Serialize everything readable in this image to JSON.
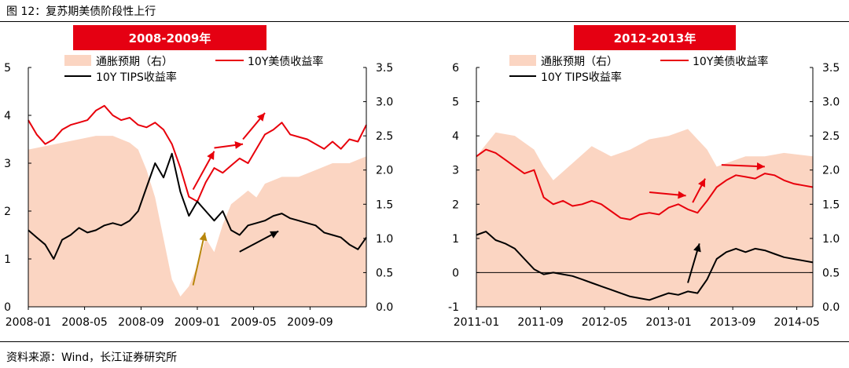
{
  "figure_title": "图 12：复苏期美债阶段性上行",
  "source": "资料来源：Wind，长江证券研究所",
  "colors": {
    "area": "#fbd5c2",
    "red_line": "#e8000b",
    "black_line": "#000000",
    "banner": "#e50012",
    "gold_arrow": "#b8860b"
  },
  "chart_data": [
    {
      "type": "line",
      "banner": "2008-2009年",
      "ylim_left": [
        0,
        5
      ],
      "yticks_left": [
        "0",
        "1",
        "2",
        "3",
        "4",
        "5"
      ],
      "ylim_right": [
        0,
        3.5
      ],
      "yticks_right": [
        "0.0",
        "0.5",
        "1.0",
        "1.5",
        "2.0",
        "2.5",
        "3.0",
        "3.5"
      ],
      "x_range": [
        2008.0,
        2010.0
      ],
      "xtick_labels": [
        "2008-01",
        "2008-05",
        "2008-09",
        "2009-01",
        "2009-05",
        "2009-09"
      ],
      "xtick_x": [
        2008.0,
        2008.333,
        2008.667,
        2009.0,
        2009.333,
        2009.667
      ],
      "legend": [
        "通胀预期（右）",
        "10Y美债收益率",
        "10Y TIPS收益率"
      ],
      "series": [
        {
          "name": "通胀预期（右）",
          "axis": "right",
          "kind": "area",
          "x": [
            2008.0,
            2008.1,
            2008.2,
            2008.3,
            2008.4,
            2008.5,
            2008.6,
            2008.65,
            2008.7,
            2008.75,
            2008.8,
            2008.85,
            2008.9,
            2008.95,
            2009.0,
            2009.05,
            2009.1,
            2009.15,
            2009.2,
            2009.25,
            2009.3,
            2009.35,
            2009.4,
            2009.5,
            2009.6,
            2009.7,
            2009.8,
            2009.9,
            2010.0
          ],
          "values": [
            2.3,
            2.35,
            2.4,
            2.45,
            2.5,
            2.5,
            2.4,
            2.3,
            2.0,
            1.6,
            1.0,
            0.4,
            0.15,
            0.3,
            0.6,
            1.0,
            0.8,
            1.2,
            1.5,
            1.6,
            1.7,
            1.6,
            1.8,
            1.9,
            1.9,
            2.0,
            2.1,
            2.1,
            2.2
          ]
        },
        {
          "name": "10Y美债收益率",
          "axis": "left",
          "kind": "line",
          "x": [
            2008.0,
            2008.05,
            2008.1,
            2008.15,
            2008.2,
            2008.25,
            2008.3,
            2008.35,
            2008.4,
            2008.45,
            2008.5,
            2008.55,
            2008.6,
            2008.65,
            2008.7,
            2008.75,
            2008.8,
            2008.85,
            2008.9,
            2008.95,
            2009.0,
            2009.05,
            2009.1,
            2009.15,
            2009.2,
            2009.25,
            2009.3,
            2009.35,
            2009.4,
            2009.45,
            2009.5,
            2009.55,
            2009.6,
            2009.65,
            2009.7,
            2009.75,
            2009.8,
            2009.85,
            2009.9,
            2009.95,
            2010.0
          ],
          "values": [
            3.9,
            3.6,
            3.4,
            3.5,
            3.7,
            3.8,
            3.85,
            3.9,
            4.1,
            4.2,
            4.0,
            3.9,
            3.95,
            3.8,
            3.75,
            3.85,
            3.7,
            3.4,
            2.9,
            2.3,
            2.2,
            2.6,
            2.9,
            2.8,
            2.95,
            3.1,
            3.0,
            3.3,
            3.6,
            3.7,
            3.85,
            3.6,
            3.55,
            3.5,
            3.4,
            3.3,
            3.45,
            3.3,
            3.5,
            3.45,
            3.8
          ]
        },
        {
          "name": "10Y TIPS收益率",
          "axis": "left",
          "kind": "line",
          "x": [
            2008.0,
            2008.05,
            2008.1,
            2008.15,
            2008.2,
            2008.25,
            2008.3,
            2008.35,
            2008.4,
            2008.45,
            2008.5,
            2008.55,
            2008.6,
            2008.65,
            2008.7,
            2008.75,
            2008.8,
            2008.85,
            2008.9,
            2008.95,
            2009.0,
            2009.05,
            2009.1,
            2009.15,
            2009.2,
            2009.25,
            2009.3,
            2009.35,
            2009.4,
            2009.45,
            2009.5,
            2009.55,
            2009.6,
            2009.65,
            2009.7,
            2009.75,
            2009.8,
            2009.85,
            2009.9,
            2009.95,
            2010.0
          ],
          "values": [
            1.6,
            1.45,
            1.3,
            1.0,
            1.4,
            1.5,
            1.65,
            1.55,
            1.6,
            1.7,
            1.75,
            1.7,
            1.8,
            2.0,
            2.5,
            3.0,
            2.7,
            3.2,
            2.4,
            1.9,
            2.2,
            2.0,
            1.8,
            2.0,
            1.6,
            1.5,
            1.7,
            1.75,
            1.8,
            1.9,
            1.95,
            1.85,
            1.8,
            1.75,
            1.7,
            1.55,
            1.5,
            1.45,
            1.3,
            1.2,
            1.45
          ]
        }
      ],
      "arrows": [
        {
          "x1": 2008.975,
          "y1": 0.45,
          "x2": 2009.045,
          "y2": 1.55,
          "color": "gold"
        },
        {
          "x1": 2008.975,
          "y1": 2.45,
          "x2": 2009.1,
          "y2": 3.25,
          "color": "red"
        },
        {
          "x1": 2009.1,
          "y1": 3.32,
          "x2": 2009.27,
          "y2": 3.4,
          "color": "red"
        },
        {
          "x1": 2009.27,
          "y1": 3.5,
          "x2": 2009.4,
          "y2": 4.05,
          "color": "red"
        },
        {
          "x1": 2009.25,
          "y1": 1.15,
          "x2": 2009.48,
          "y2": 1.58,
          "color": "black"
        }
      ]
    },
    {
      "type": "line",
      "banner": "2012-2013年",
      "ylim_left": [
        -1,
        6
      ],
      "yticks_left": [
        "-1",
        "0",
        "1",
        "2",
        "3",
        "4",
        "5",
        "6"
      ],
      "ylim_right": [
        0,
        3.5
      ],
      "yticks_right": [
        "0.0",
        "0.5",
        "1.0",
        "1.5",
        "2.0",
        "2.5",
        "3.0",
        "3.5"
      ],
      "x_range": [
        2011.0,
        2014.5
      ],
      "xtick_labels": [
        "2011-01",
        "2011-09",
        "2012-05",
        "2013-01",
        "2013-09",
        "2014-05"
      ],
      "xtick_x": [
        2011.0,
        2011.667,
        2012.333,
        2013.0,
        2013.667,
        2014.333
      ],
      "legend": [
        "通胀预期（右）",
        "10Y美债收益率",
        "10Y TIPS收益率"
      ],
      "zero_line": 0,
      "series": [
        {
          "name": "通胀预期（右）",
          "axis": "right",
          "kind": "area",
          "x": [
            2011.0,
            2011.2,
            2011.4,
            2011.6,
            2011.7,
            2011.8,
            2012.0,
            2012.2,
            2012.4,
            2012.6,
            2012.8,
            2013.0,
            2013.2,
            2013.4,
            2013.5,
            2013.6,
            2013.8,
            2014.0,
            2014.2,
            2014.5
          ],
          "values": [
            2.2,
            2.55,
            2.5,
            2.3,
            2.05,
            1.85,
            2.1,
            2.35,
            2.2,
            2.3,
            2.45,
            2.5,
            2.6,
            2.3,
            2.05,
            2.1,
            2.2,
            2.2,
            2.25,
            2.2
          ]
        },
        {
          "name": "10Y美债收益率",
          "axis": "left",
          "kind": "line",
          "x": [
            2011.0,
            2011.1,
            2011.2,
            2011.3,
            2011.4,
            2011.5,
            2011.6,
            2011.7,
            2011.8,
            2011.9,
            2012.0,
            2012.1,
            2012.2,
            2012.3,
            2012.4,
            2012.5,
            2012.6,
            2012.7,
            2012.8,
            2012.9,
            2013.0,
            2013.1,
            2013.2,
            2013.3,
            2013.4,
            2013.5,
            2013.6,
            2013.7,
            2013.8,
            2013.9,
            2014.0,
            2014.1,
            2014.2,
            2014.3,
            2014.4,
            2014.5
          ],
          "values": [
            3.4,
            3.6,
            3.5,
            3.3,
            3.1,
            2.9,
            3.0,
            2.2,
            2.0,
            2.1,
            1.95,
            2.0,
            2.1,
            2.0,
            1.8,
            1.6,
            1.55,
            1.7,
            1.75,
            1.7,
            1.9,
            2.0,
            1.85,
            1.75,
            2.1,
            2.5,
            2.7,
            2.85,
            2.8,
            2.75,
            2.9,
            2.85,
            2.7,
            2.6,
            2.55,
            2.5
          ]
        },
        {
          "name": "10Y TIPS收益率",
          "axis": "left",
          "kind": "line",
          "x": [
            2011.0,
            2011.1,
            2011.2,
            2011.3,
            2011.4,
            2011.5,
            2011.6,
            2011.7,
            2011.8,
            2011.9,
            2012.0,
            2012.1,
            2012.2,
            2012.3,
            2012.4,
            2012.5,
            2012.6,
            2012.7,
            2012.8,
            2012.9,
            2013.0,
            2013.1,
            2013.2,
            2013.3,
            2013.4,
            2013.5,
            2013.6,
            2013.7,
            2013.8,
            2013.9,
            2014.0,
            2014.1,
            2014.2,
            2014.3,
            2014.4,
            2014.5
          ],
          "values": [
            1.1,
            1.2,
            0.95,
            0.85,
            0.7,
            0.4,
            0.1,
            -0.05,
            0.0,
            -0.05,
            -0.1,
            -0.2,
            -0.3,
            -0.4,
            -0.5,
            -0.6,
            -0.7,
            -0.75,
            -0.8,
            -0.7,
            -0.6,
            -0.65,
            -0.55,
            -0.6,
            -0.2,
            0.4,
            0.6,
            0.7,
            0.6,
            0.7,
            0.65,
            0.55,
            0.45,
            0.4,
            0.35,
            0.3
          ]
        }
      ],
      "arrows": [
        {
          "x1": 2012.8,
          "y1": 2.35,
          "x2": 2013.18,
          "y2": 2.25,
          "color": "red"
        },
        {
          "x1": 2013.25,
          "y1": 2.05,
          "x2": 2013.38,
          "y2": 2.75,
          "color": "red"
        },
        {
          "x1": 2013.55,
          "y1": 3.15,
          "x2": 2014.0,
          "y2": 3.1,
          "color": "red"
        },
        {
          "x1": 2013.2,
          "y1": -0.3,
          "x2": 2013.32,
          "y2": 0.85,
          "color": "black"
        }
      ]
    }
  ]
}
